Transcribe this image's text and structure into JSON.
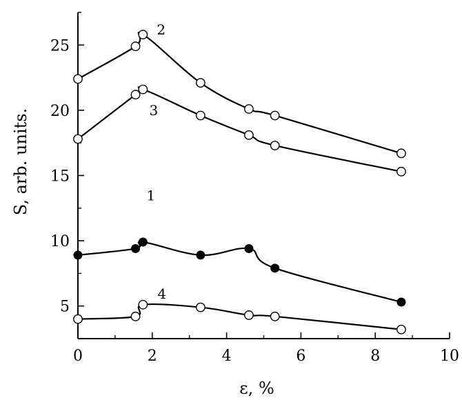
{
  "chart_data": {
    "type": "line",
    "xlabel": "ε, %",
    "ylabel": "S, arb. units.",
    "xlim": [
      0,
      10
    ],
    "ylim": [
      2.5,
      27.5
    ],
    "xticks": [
      "0",
      "2",
      "4",
      "6",
      "8",
      "10"
    ],
    "xtick_values": [
      0,
      2,
      4,
      6,
      8,
      10
    ],
    "yticks": [
      "5",
      "10",
      "15",
      "20",
      "25"
    ],
    "ytick_values": [
      5,
      10,
      15,
      20,
      25
    ],
    "grid": false,
    "series": [
      {
        "name": "2",
        "marker": "open-circle",
        "x": [
          0,
          1.55,
          1.75,
          3.3,
          4.6,
          5.3,
          8.7
        ],
        "y": [
          22.4,
          24.9,
          25.8,
          22.1,
          20.1,
          19.6,
          16.7
        ]
      },
      {
        "name": "3",
        "marker": "open-circle",
        "x": [
          0,
          1.55,
          1.75,
          3.3,
          4.6,
          5.3,
          8.7
        ],
        "y": [
          17.8,
          21.2,
          21.6,
          19.6,
          18.1,
          17.3,
          15.3
        ]
      },
      {
        "name": "1",
        "marker": "filled-circle",
        "x": [
          0,
          1.55,
          1.75,
          3.3,
          4.6,
          5.3,
          8.7
        ],
        "y": [
          8.9,
          9.4,
          9.9,
          8.9,
          9.4,
          7.9,
          5.3
        ]
      },
      {
        "name": "4",
        "marker": "open-circle",
        "x": [
          0,
          1.55,
          1.75,
          3.3,
          4.6,
          5.3,
          8.7
        ],
        "y": [
          4.0,
          4.2,
          5.1,
          4.9,
          4.3,
          4.2,
          3.2
        ]
      }
    ]
  }
}
